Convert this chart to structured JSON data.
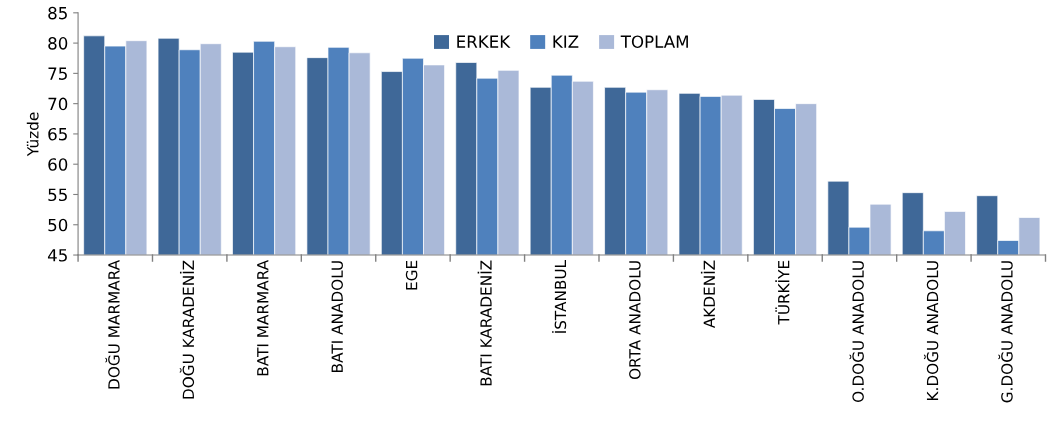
{
  "chart_data": {
    "type": "bar",
    "ylabel": "Yüzde",
    "categories": [
      "DOĞU MARMARA",
      "DOĞU KARADENİZ",
      "BATI MARMARA",
      "BATI ANADOLU",
      "EGE",
      "BATI KARADENİZ",
      "İSTANBUL",
      "ORTA ANADOLU",
      "AKDENİZ",
      "TÜRKİYE",
      "O.DOĞU ANADOLU",
      "K.DOĞU ANADOLU",
      "G.DOĞU ANADOLU"
    ],
    "series": [
      {
        "name": "ERKEK",
        "color": "#3f6898",
        "values": [
          81.2,
          80.8,
          78.5,
          77.6,
          75.3,
          76.8,
          72.7,
          72.7,
          71.7,
          70.7,
          57.2,
          55.3,
          54.8
        ]
      },
      {
        "name": "KIZ",
        "color": "#4f81bd",
        "values": [
          79.5,
          78.9,
          80.3,
          79.3,
          77.5,
          74.2,
          74.7,
          71.9,
          71.2,
          69.2,
          49.6,
          49.0,
          47.4
        ]
      },
      {
        "name": "TOPLAM",
        "color": "#aab9d8",
        "values": [
          80.4,
          79.9,
          79.4,
          78.4,
          76.4,
          75.5,
          73.7,
          72.3,
          71.4,
          70.0,
          53.4,
          52.2,
          51.2
        ]
      }
    ],
    "ylim": [
      45,
      85
    ],
    "yticks": [
      45,
      50,
      55,
      60,
      65,
      70,
      75,
      80,
      85
    ],
    "grid": false,
    "legend": "top"
  }
}
